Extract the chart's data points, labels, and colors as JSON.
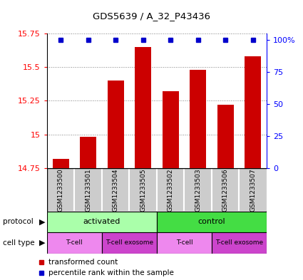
{
  "title": "GDS5639 / A_32_P43436",
  "samples": [
    "GSM1233500",
    "GSM1233501",
    "GSM1233504",
    "GSM1233505",
    "GSM1233502",
    "GSM1233503",
    "GSM1233506",
    "GSM1233507"
  ],
  "transformed_counts": [
    14.82,
    14.98,
    15.4,
    15.65,
    15.32,
    15.48,
    15.22,
    15.58
  ],
  "percentile_ranks": [
    100,
    100,
    100,
    100,
    100,
    100,
    100,
    100
  ],
  "ylim": [
    14.75,
    15.75
  ],
  "yticks": [
    14.75,
    15.0,
    15.25,
    15.5,
    15.75
  ],
  "ytick_labels": [
    "14.75",
    "15",
    "15.25",
    "15.5",
    "15.75"
  ],
  "y2ticks": [
    0,
    25,
    50,
    75,
    100
  ],
  "y2tick_labels": [
    "0",
    "25",
    "50",
    "75",
    "100%"
  ],
  "bar_color": "#cc0000",
  "dot_color": "#0000cc",
  "protocol_activated_color": "#aaffaa",
  "protocol_control_color": "#44dd44",
  "celltype_tcell_color": "#ee88ee",
  "celltype_exosome_color": "#cc44cc",
  "sample_bg_color": "#cccccc",
  "protocol_groups": [
    {
      "label": "activated",
      "start": 0,
      "end": 3
    },
    {
      "label": "control",
      "start": 4,
      "end": 7
    }
  ],
  "celltype_groups": [
    {
      "label": "T-cell",
      "start": 0,
      "end": 1,
      "color": "#ee88ee"
    },
    {
      "label": "T-cell exosome",
      "start": 2,
      "end": 3,
      "color": "#cc44cc"
    },
    {
      "label": "T-cell",
      "start": 4,
      "end": 5,
      "color": "#ee88ee"
    },
    {
      "label": "T-cell exosome",
      "start": 6,
      "end": 7,
      "color": "#cc44cc"
    }
  ]
}
